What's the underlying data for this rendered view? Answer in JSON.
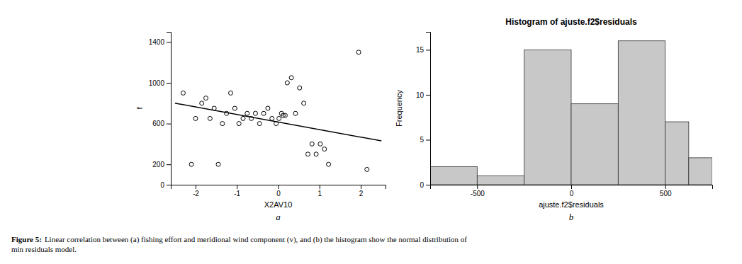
{
  "chart_data": [
    {
      "type": "scatter",
      "xlabel": "X2AV10",
      "ylabel": "f",
      "xlim": [
        -2.6,
        2.6
      ],
      "ylim": [
        0,
        1500
      ],
      "xticks": [
        -2,
        -1,
        0,
        1,
        2
      ],
      "yticks": [
        0,
        200,
        600,
        1000,
        1400
      ],
      "annotations": [
        "a"
      ],
      "series": [
        {
          "type": "scatter",
          "marker": "circle",
          "color": "#000000",
          "x": [
            -2.3,
            -2.1,
            -2.0,
            -1.85,
            -1.75,
            -1.65,
            -1.55,
            -1.45,
            -1.35,
            -1.25,
            -1.15,
            -1.05,
            -0.95,
            -0.85,
            -0.75,
            -0.65,
            -0.55,
            -0.45,
            -0.35,
            -0.25,
            -0.15,
            -0.05,
            0.02,
            0.08,
            0.12,
            0.17,
            0.22,
            0.32,
            0.42,
            0.52,
            0.62,
            0.72,
            0.82,
            0.92,
            1.02,
            1.12,
            1.22,
            1.95,
            2.15
          ],
          "values": [
            900,
            200,
            650,
            800,
            850,
            650,
            750,
            200,
            600,
            700,
            900,
            750,
            600,
            650,
            700,
            650,
            700,
            600,
            700,
            750,
            650,
            600,
            650,
            700,
            680,
            680,
            1000,
            1050,
            700,
            950,
            800,
            300,
            400,
            300,
            400,
            350,
            200,
            1300,
            150
          ]
        },
        {
          "type": "line",
          "line_style": "solid",
          "color": "#000000",
          "x": [
            -2.5,
            2.5
          ],
          "values": [
            800,
            430
          ]
        }
      ]
    },
    {
      "type": "histogram",
      "title": "Histogram of ajuste.f2$residuals",
      "xlabel": "ajuste.f2$residuals",
      "ylabel": "Frequency",
      "bins": [
        -750,
        -500,
        -250,
        0,
        250,
        500,
        625,
        750
      ],
      "values": [
        2,
        1,
        15,
        9,
        16,
        7,
        3
      ],
      "color": "#c8c8c8",
      "xlim": [
        -750,
        750
      ],
      "ylim": [
        0,
        17
      ],
      "xticks": [
        -500,
        0,
        500
      ],
      "yticks": [
        0,
        5,
        10,
        15
      ],
      "annotations": [
        "b"
      ]
    }
  ],
  "caption": [
    "Figure 5:",
    "Linear correlation between (a) fishing effort and meridional wind component (v), and (b) the histogram show the normal distribution of",
    "min residuals model."
  ]
}
